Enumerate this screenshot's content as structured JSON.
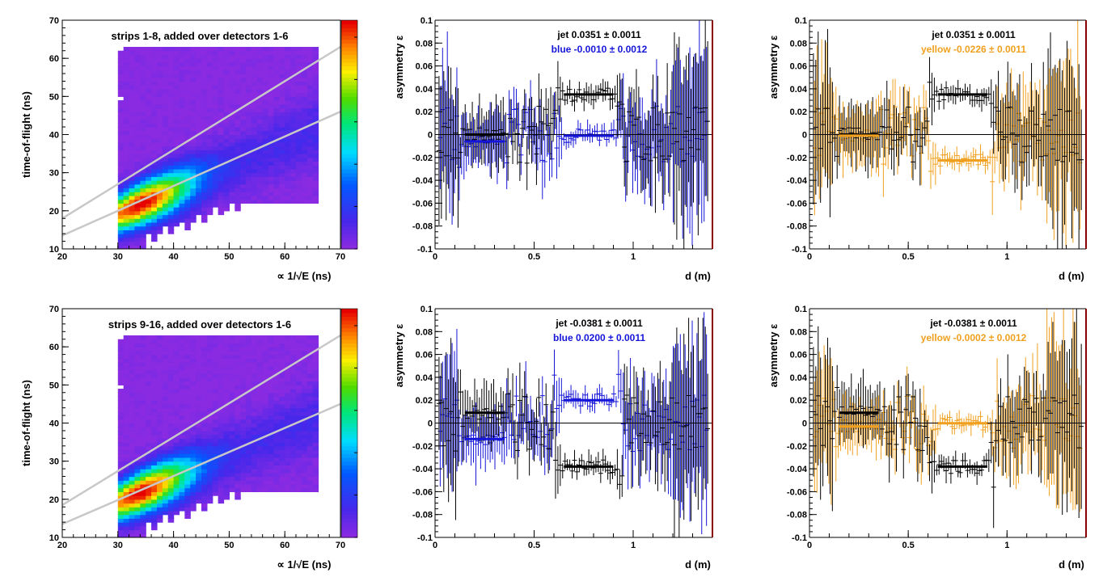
{
  "colors": {
    "blue": "#1515d9",
    "yellow": "#f0a01e",
    "black": "#000000",
    "frame_right": "#8b0000",
    "fit_lines": "#c8c8c8"
  },
  "chart_data": [
    {
      "type": "heatmap",
      "title": "strips 1-8, added over detectors 1-6",
      "xlabel": "∝ 1/√E (ns)",
      "ylabel": "time-of-flight (ns)",
      "xlim": [
        20,
        70
      ],
      "ylim": [
        10,
        70
      ],
      "xticks": [
        "20",
        "30",
        "40",
        "50",
        "60",
        "70"
      ],
      "yticks": [
        "10",
        "20",
        "30",
        "40",
        "50",
        "60",
        "70"
      ],
      "peak": [
        34,
        26
      ],
      "band_lines": [
        {
          "x": [
            20,
            70
          ],
          "y": [
            18,
            63
          ]
        },
        {
          "x": [
            20,
            70
          ],
          "y": [
            13.5,
            46
          ]
        }
      ],
      "colorbar": "rainbow"
    },
    {
      "type": "scatter",
      "xlabel": "d (m)",
      "ylabel": "asymmetry ε",
      "xlim": [
        0,
        1.4
      ],
      "ylim": [
        -0.1,
        0.1
      ],
      "xticks": [
        "0",
        "0.5",
        "1"
      ],
      "yticks": [
        "-0.1",
        "-0.08",
        "-0.06",
        "-0.04",
        "-0.02",
        "0",
        "0.02",
        "0.04",
        "0.06",
        "0.08",
        "0.1"
      ],
      "legend": [
        {
          "label": "jet",
          "value": "0.0351 ± 0.0011",
          "color": "#000000"
        },
        {
          "label": "blue",
          "value": "-0.0010 ± 0.0012",
          "color": "#1515d9"
        }
      ],
      "fits": [
        {
          "series": "jet",
          "segments": [
            {
              "x": [
                0.15,
                0.35
              ],
              "y": 0.0
            },
            {
              "x": [
                0.65,
                0.9
              ],
              "y": 0.0351
            }
          ]
        },
        {
          "series": "blue",
          "segments": [
            {
              "x": [
                0.15,
                0.35
              ],
              "y": -0.006
            },
            {
              "x": [
                0.65,
                0.9
              ],
              "y": -0.001
            }
          ]
        }
      ]
    },
    {
      "type": "scatter",
      "xlabel": "d (m)",
      "ylabel": "asymmetry ε",
      "xlim": [
        0,
        1.4
      ],
      "ylim": [
        -0.1,
        0.1
      ],
      "xticks": [
        "0",
        "0.5",
        "1"
      ],
      "yticks": [
        "-0.1",
        "-0.08",
        "-0.06",
        "-0.04",
        "-0.02",
        "0",
        "0.02",
        "0.04",
        "0.06",
        "0.08",
        "0.1"
      ],
      "legend": [
        {
          "label": "jet",
          "value": "0.0351 ± 0.0011",
          "color": "#000000"
        },
        {
          "label": "yellow",
          "value": "-0.0226 ± 0.0011",
          "color": "#f0a01e"
        }
      ],
      "fits": [
        {
          "series": "jet",
          "segments": [
            {
              "x": [
                0.15,
                0.35
              ],
              "y": 0.0
            },
            {
              "x": [
                0.65,
                0.9
              ],
              "y": 0.0351
            }
          ]
        },
        {
          "series": "yellow",
          "segments": [
            {
              "x": [
                0.15,
                0.35
              ],
              "y": -0.001
            },
            {
              "x": [
                0.65,
                0.9
              ],
              "y": -0.0226
            }
          ]
        }
      ]
    },
    {
      "type": "heatmap",
      "title": "strips 9-16, added over detectors 1-6",
      "xlabel": "∝ 1/√E (ns)",
      "ylabel": "time-of-flight (ns)",
      "xlim": [
        20,
        70
      ],
      "ylim": [
        10,
        70
      ],
      "xticks": [
        "20",
        "30",
        "40",
        "50",
        "60",
        "70"
      ],
      "yticks": [
        "10",
        "20",
        "30",
        "40",
        "50",
        "60",
        "70"
      ],
      "peak": [
        34,
        25
      ],
      "band_lines": [
        {
          "x": [
            20,
            70
          ],
          "y": [
            18.5,
            63
          ]
        },
        {
          "x": [
            20,
            70
          ],
          "y": [
            13.5,
            45
          ]
        }
      ],
      "colorbar": "rainbow"
    },
    {
      "type": "scatter",
      "xlabel": "d (m)",
      "ylabel": "asymmetry ε",
      "xlim": [
        0,
        1.4
      ],
      "ylim": [
        -0.1,
        0.1
      ],
      "xticks": [
        "0",
        "0.5",
        "1"
      ],
      "yticks": [
        "-0.1",
        "-0.08",
        "-0.06",
        "-0.04",
        "-0.02",
        "0",
        "0.02",
        "0.04",
        "0.06",
        "0.08",
        "0.1"
      ],
      "legend": [
        {
          "label": "jet",
          "value": "-0.0381 ± 0.0011",
          "color": "#000000"
        },
        {
          "label": "blue",
          "value": "0.0200 ± 0.0011",
          "color": "#1515d9"
        }
      ],
      "fits": [
        {
          "series": "jet",
          "segments": [
            {
              "x": [
                0.15,
                0.35
              ],
              "y": 0.009
            },
            {
              "x": [
                0.65,
                0.9
              ],
              "y": -0.0381
            }
          ]
        },
        {
          "series": "blue",
          "segments": [
            {
              "x": [
                0.15,
                0.35
              ],
              "y": -0.014
            },
            {
              "x": [
                0.65,
                0.9
              ],
              "y": 0.02
            }
          ]
        }
      ]
    },
    {
      "type": "scatter",
      "xlabel": "d (m)",
      "ylabel": "asymmetry ε",
      "xlim": [
        0,
        1.4
      ],
      "ylim": [
        -0.1,
        0.1
      ],
      "xticks": [
        "0",
        "0.5",
        "1"
      ],
      "yticks": [
        "-0.1",
        "-0.08",
        "-0.06",
        "-0.04",
        "-0.02",
        "0",
        "0.02",
        "0.04",
        "0.06",
        "0.08",
        "0.1"
      ],
      "legend": [
        {
          "label": "jet",
          "value": "-0.0381 ± 0.0011",
          "color": "#000000"
        },
        {
          "label": "yellow",
          "value": "-0.0002 ± 0.0012",
          "color": "#f0a01e"
        }
      ],
      "fits": [
        {
          "series": "jet",
          "segments": [
            {
              "x": [
                0.15,
                0.35
              ],
              "y": 0.009
            },
            {
              "x": [
                0.65,
                0.9
              ],
              "y": -0.0381
            }
          ]
        },
        {
          "series": "yellow",
          "segments": [
            {
              "x": [
                0.15,
                0.35
              ],
              "y": -0.003
            },
            {
              "x": [
                0.65,
                0.9
              ],
              "y": -0.0002
            }
          ]
        }
      ]
    }
  ]
}
